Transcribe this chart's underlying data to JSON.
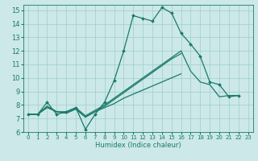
{
  "xlabel": "Humidex (Indice chaleur)",
  "bg_color": "#cce8e8",
  "grid_color": "#9ecece",
  "line_color": "#1a7a6a",
  "xlim": [
    -0.5,
    23.5
  ],
  "ylim": [
    6,
    15.4
  ],
  "xticks": [
    0,
    1,
    2,
    3,
    4,
    5,
    6,
    7,
    8,
    9,
    10,
    11,
    12,
    13,
    14,
    15,
    16,
    17,
    18,
    19,
    20,
    21,
    22,
    23
  ],
  "yticks": [
    6,
    7,
    8,
    9,
    10,
    11,
    12,
    13,
    14,
    15
  ],
  "line1_x": [
    0,
    1,
    2,
    3,
    4,
    5,
    6,
    7,
    8,
    9,
    10,
    11,
    12,
    13,
    14,
    15,
    16,
    17,
    18,
    19,
    20,
    21,
    22
  ],
  "line1_y": [
    7.3,
    7.3,
    8.2,
    7.3,
    7.5,
    7.8,
    6.2,
    7.3,
    8.2,
    9.8,
    12.0,
    14.6,
    14.4,
    14.2,
    15.2,
    14.8,
    13.3,
    12.5,
    11.6,
    9.7,
    9.5,
    8.6,
    8.7
  ],
  "line2_x": [
    0,
    1,
    2,
    3,
    4,
    5,
    6,
    7,
    8,
    9,
    10,
    11,
    12,
    13,
    14,
    15,
    16,
    17,
    18,
    19,
    20,
    21,
    22
  ],
  "line2_y": [
    7.3,
    7.3,
    7.9,
    7.5,
    7.5,
    7.8,
    7.2,
    7.6,
    8.0,
    8.5,
    9.0,
    9.5,
    10.0,
    10.5,
    11.0,
    11.5,
    12.0,
    10.5,
    9.7,
    9.5,
    8.6,
    8.7,
    8.7
  ],
  "line3_x": [
    0,
    1,
    2,
    3,
    4,
    5,
    6,
    7,
    8,
    9,
    10,
    11,
    12,
    13,
    14,
    15,
    16
  ],
  "line3_y": [
    7.3,
    7.3,
    7.9,
    7.5,
    7.4,
    7.7,
    7.1,
    7.5,
    7.9,
    8.4,
    8.9,
    9.4,
    9.9,
    10.4,
    10.9,
    11.4,
    11.8
  ],
  "line4_x": [
    0,
    1,
    2,
    3,
    4,
    5,
    6,
    7,
    8,
    9,
    10,
    11,
    12,
    13,
    14,
    15,
    16
  ],
  "line4_y": [
    7.3,
    7.3,
    7.8,
    7.5,
    7.4,
    7.7,
    7.1,
    7.5,
    7.8,
    8.1,
    8.5,
    8.8,
    9.1,
    9.4,
    9.7,
    10.0,
    10.3
  ]
}
